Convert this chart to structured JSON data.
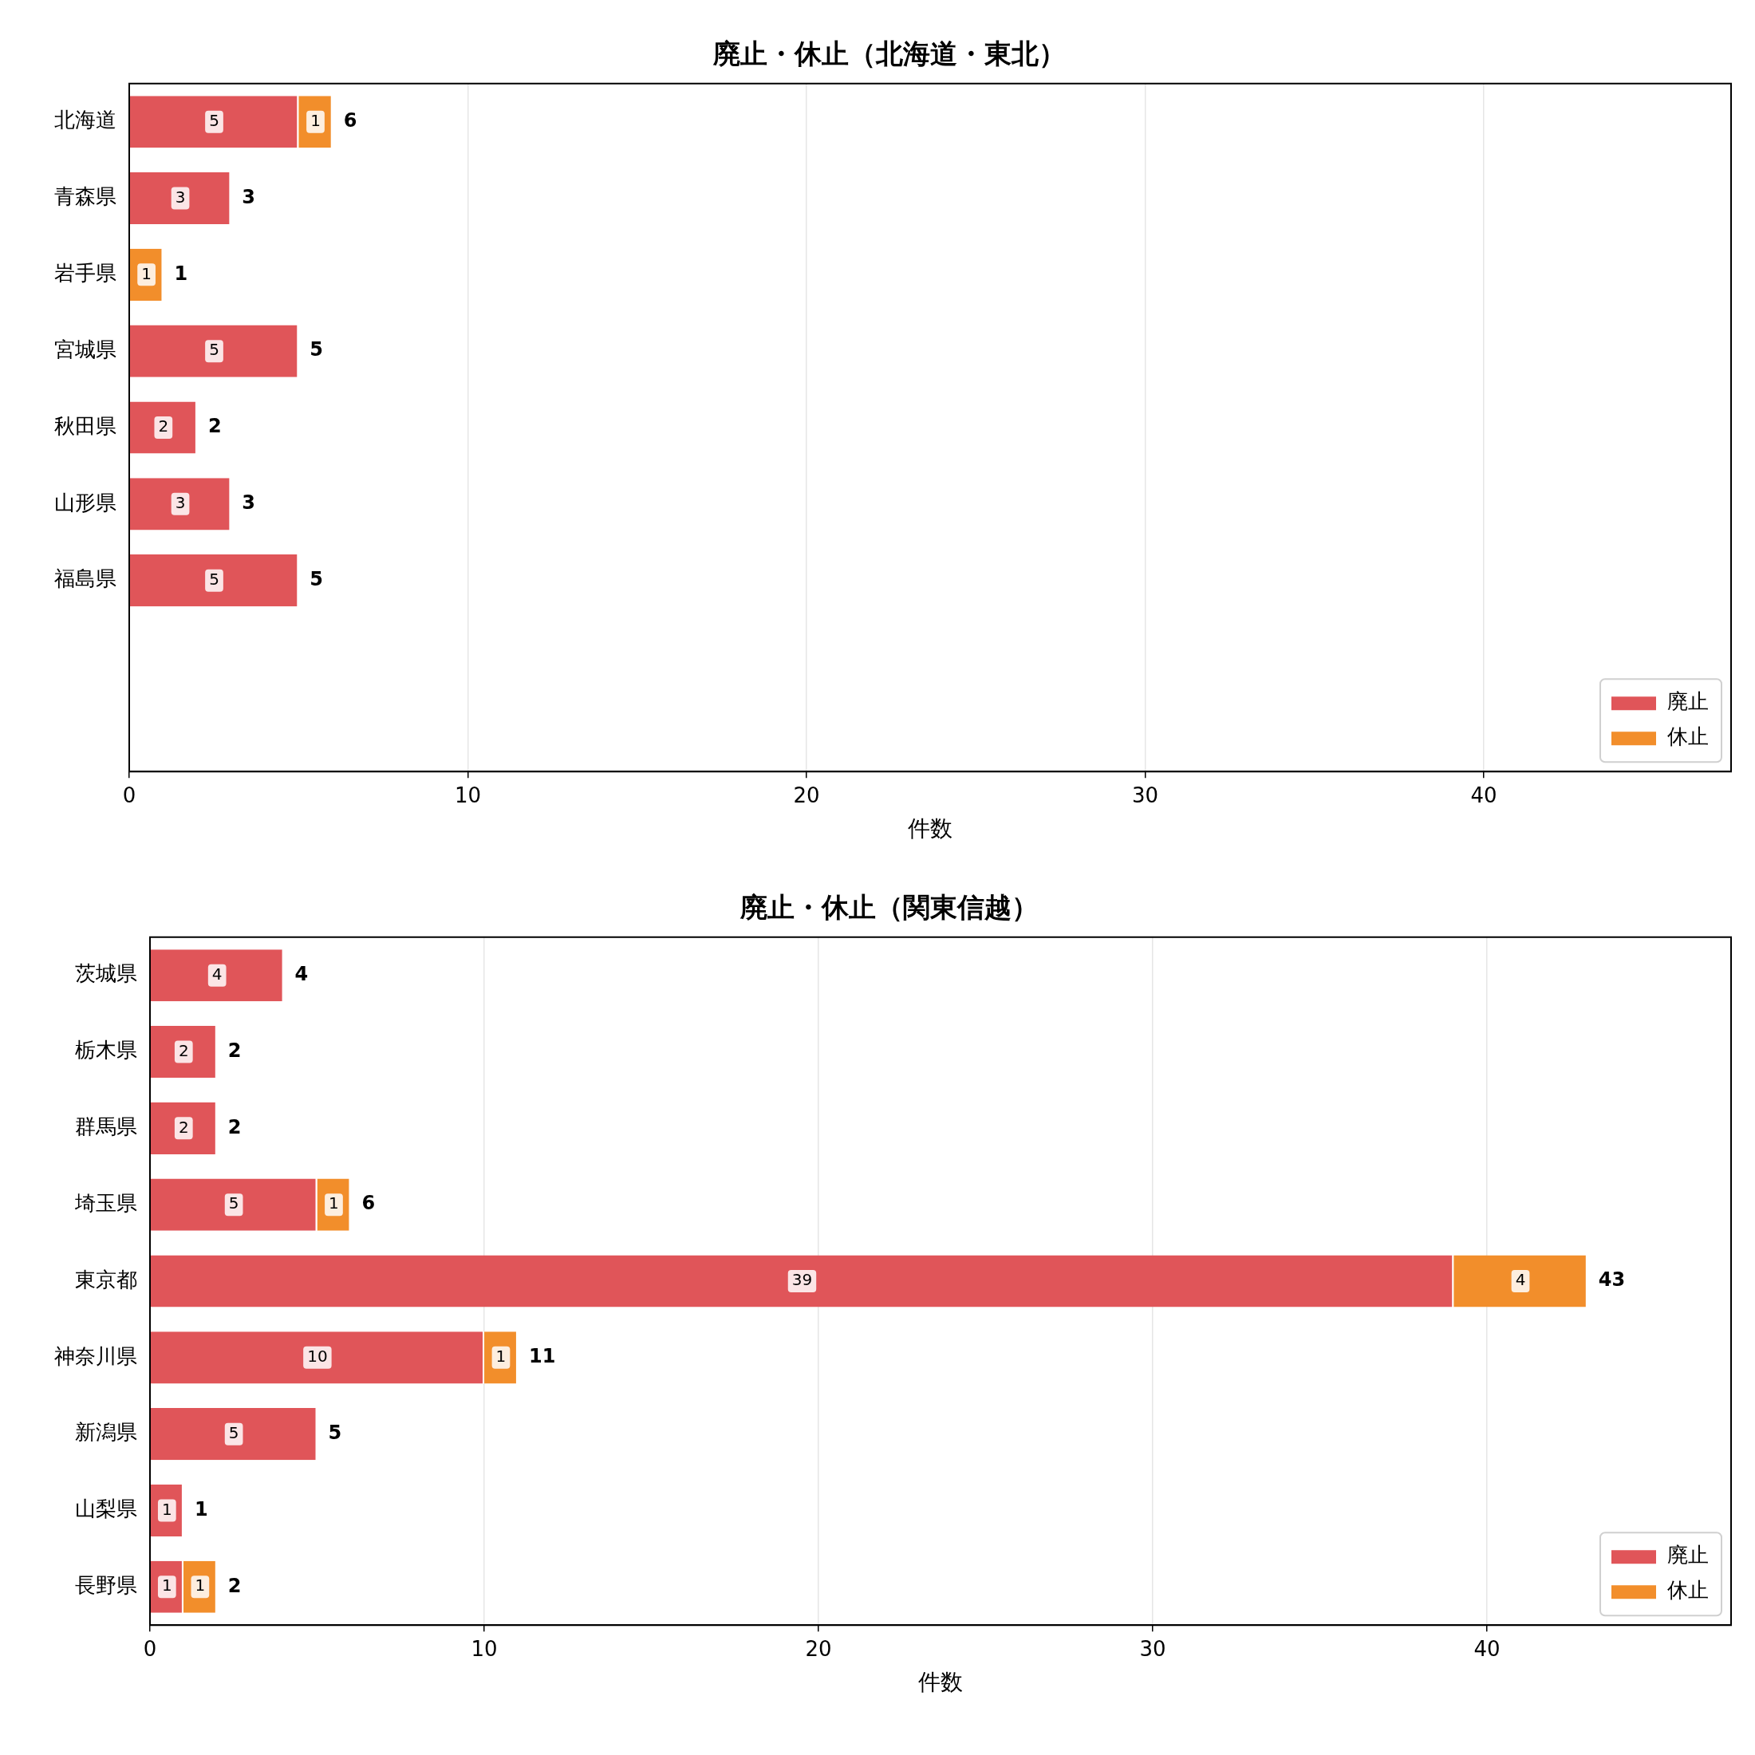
{
  "chart_data": [
    {
      "type": "bar",
      "orientation": "horizontal",
      "stacked": true,
      "title": "廃止・休止（北海道・東北）",
      "xlabel": "件数",
      "categories": [
        "北海道",
        "青森県",
        "岩手県",
        "宮城県",
        "秋田県",
        "山形県",
        "福島県",
        null,
        null
      ],
      "series": [
        {
          "name": "廃止",
          "color": "#e05559",
          "values": [
            5,
            3,
            null,
            5,
            2,
            3,
            5,
            null,
            null
          ]
        },
        {
          "name": "休止",
          "color": "#f28e2b",
          "values": [
            1,
            null,
            1,
            null,
            null,
            null,
            null,
            null,
            null
          ]
        }
      ],
      "totals": [
        "6",
        "3",
        "1",
        "5",
        "2",
        "3",
        "5",
        null,
        null
      ],
      "data_labels": true,
      "xlim": [
        0,
        47.3
      ],
      "xticks": [
        0,
        10,
        20,
        30,
        40
      ],
      "grid": "x",
      "legend": "bottom right"
    },
    {
      "type": "bar",
      "orientation": "horizontal",
      "stacked": true,
      "title": "廃止・休止（関東信越）",
      "xlabel": "件数",
      "categories": [
        "茨城県",
        "栃木県",
        "群馬県",
        "埼玉県",
        "東京都",
        "神奈川県",
        "新潟県",
        "山梨県",
        "長野県"
      ],
      "series": [
        {
          "name": "廃止",
          "color": "#e05559",
          "values": [
            4,
            2,
            2,
            5,
            39,
            10,
            5,
            1,
            1
          ]
        },
        {
          "name": "休止",
          "color": "#f28e2b",
          "values": [
            null,
            null,
            null,
            1,
            4,
            1,
            null,
            null,
            1
          ]
        }
      ],
      "totals": [
        "4",
        "2",
        "2",
        "6",
        "43",
        "11",
        "5",
        "1",
        "2"
      ],
      "data_labels": true,
      "xlim": [
        0,
        47.3
      ],
      "xticks": [
        0,
        10,
        20,
        30,
        40
      ],
      "grid": "x",
      "legend": "bottom right"
    }
  ]
}
